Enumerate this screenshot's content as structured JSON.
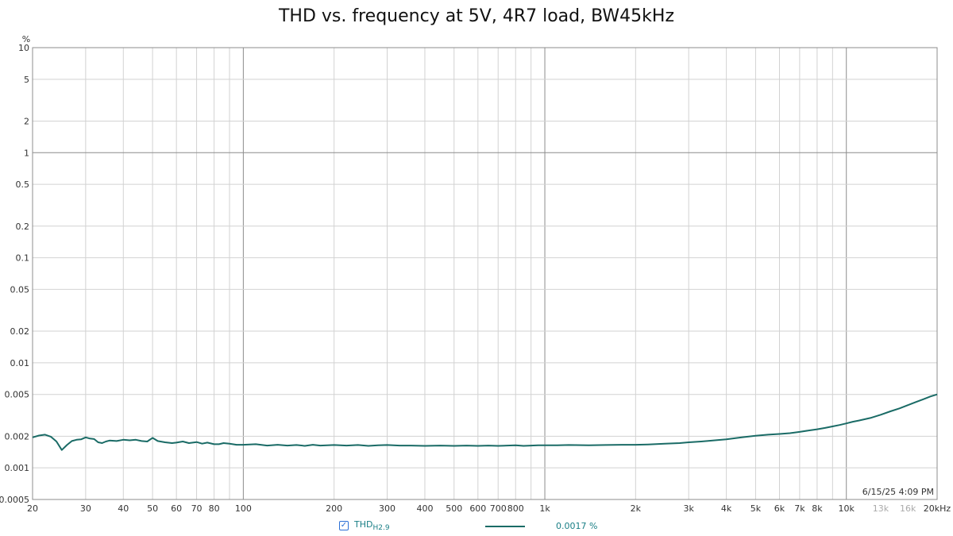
{
  "chart_data": {
    "type": "line",
    "title": "THD vs. frequency at 5V, 4R7 load, BW45kHz",
    "ylabel": "%",
    "xlabel": "",
    "x_scale": "log",
    "y_scale": "log",
    "xlim": [
      20,
      20000
    ],
    "ylim": [
      0.0005,
      10
    ],
    "grid": true,
    "y_ticks": [
      {
        "value": 10,
        "label": "10"
      },
      {
        "value": 5,
        "label": "5"
      },
      {
        "value": 2,
        "label": "2"
      },
      {
        "value": 1,
        "label": "1"
      },
      {
        "value": 0.5,
        "label": "0.5"
      },
      {
        "value": 0.2,
        "label": "0.2"
      },
      {
        "value": 0.1,
        "label": "0.1"
      },
      {
        "value": 0.05,
        "label": "0.05"
      },
      {
        "value": 0.02,
        "label": "0.02"
      },
      {
        "value": 0.01,
        "label": "0.01"
      },
      {
        "value": 0.005,
        "label": "0.005"
      },
      {
        "value": 0.002,
        "label": "0.002"
      },
      {
        "value": 0.001,
        "label": "0.001"
      },
      {
        "value": 0.0005,
        "label": "0.0005"
      }
    ],
    "x_ticks": [
      {
        "value": 20,
        "label": "20"
      },
      {
        "value": 30,
        "label": "30"
      },
      {
        "value": 40,
        "label": "40"
      },
      {
        "value": 50,
        "label": "50"
      },
      {
        "value": 60,
        "label": "60"
      },
      {
        "value": 70,
        "label": "70"
      },
      {
        "value": 80,
        "label": "80"
      },
      {
        "value": 100,
        "label": "100"
      },
      {
        "value": 200,
        "label": "200"
      },
      {
        "value": 300,
        "label": "300"
      },
      {
        "value": 400,
        "label": "400"
      },
      {
        "value": 500,
        "label": "500"
      },
      {
        "value": 600,
        "label": "600"
      },
      {
        "value": 700,
        "label": "700"
      },
      {
        "value": 800,
        "label": "800"
      },
      {
        "value": 1000,
        "label": "1k"
      },
      {
        "value": 2000,
        "label": "2k"
      },
      {
        "value": 3000,
        "label": "3k"
      },
      {
        "value": 4000,
        "label": "4k"
      },
      {
        "value": 5000,
        "label": "5k"
      },
      {
        "value": 6000,
        "label": "6k"
      },
      {
        "value": 7000,
        "label": "7k"
      },
      {
        "value": 8000,
        "label": "8k"
      },
      {
        "value": 10000,
        "label": "10k"
      },
      {
        "value": 13000,
        "label": "13k"
      },
      {
        "value": 16000,
        "label": "16k"
      },
      {
        "value": 20000,
        "label": "20kHz"
      }
    ],
    "series": [
      {
        "name": "THD",
        "name_sub": "H2.9",
        "color": "#1a6b66",
        "x": [
          20,
          21,
          22,
          23,
          24,
          25,
          26,
          27,
          28,
          29,
          30,
          31,
          32,
          33,
          34,
          35,
          36,
          38,
          40,
          42,
          44,
          46,
          48,
          50,
          52,
          55,
          58,
          60,
          63,
          66,
          70,
          73,
          76,
          80,
          83,
          86,
          90,
          95,
          100,
          110,
          120,
          130,
          140,
          150,
          160,
          170,
          180,
          190,
          200,
          220,
          240,
          260,
          280,
          300,
          330,
          360,
          400,
          450,
          500,
          550,
          600,
          650,
          700,
          750,
          800,
          850,
          900,
          950,
          1000,
          1100,
          1200,
          1400,
          1600,
          1800,
          2000,
          2200,
          2500,
          2800,
          3000,
          3300,
          3600,
          4000,
          4500,
          5000,
          5500,
          6000,
          6500,
          7000,
          7500,
          8000,
          8500,
          9000,
          9500,
          10000,
          10500,
          11000,
          12000,
          13000,
          14000,
          15000,
          16000,
          17000,
          18000,
          19000,
          20000
        ],
        "values": [
          0.00195,
          0.00203,
          0.00207,
          0.00198,
          0.00178,
          0.00148,
          0.00165,
          0.0018,
          0.00185,
          0.00187,
          0.00195,
          0.0019,
          0.00188,
          0.00175,
          0.00172,
          0.00178,
          0.00182,
          0.0018,
          0.00185,
          0.00183,
          0.00185,
          0.0018,
          0.00178,
          0.00193,
          0.0018,
          0.00175,
          0.00172,
          0.00174,
          0.00178,
          0.00172,
          0.00176,
          0.0017,
          0.00174,
          0.00168,
          0.00168,
          0.00172,
          0.0017,
          0.00166,
          0.00166,
          0.00168,
          0.00163,
          0.00166,
          0.00163,
          0.00165,
          0.00162,
          0.00166,
          0.00163,
          0.00164,
          0.00165,
          0.00163,
          0.00165,
          0.00162,
          0.00164,
          0.00165,
          0.00163,
          0.00163,
          0.00162,
          0.00163,
          0.00162,
          0.00163,
          0.00162,
          0.00163,
          0.00162,
          0.00163,
          0.00164,
          0.00162,
          0.00163,
          0.00164,
          0.00164,
          0.00164,
          0.00165,
          0.00164,
          0.00165,
          0.00166,
          0.00166,
          0.00167,
          0.0017,
          0.00172,
          0.00175,
          0.00178,
          0.00182,
          0.00187,
          0.00195,
          0.00202,
          0.00207,
          0.0021,
          0.00214,
          0.0022,
          0.00227,
          0.00233,
          0.0024,
          0.00248,
          0.00256,
          0.00265,
          0.00275,
          0.00282,
          0.00298,
          0.0032,
          0.00345,
          0.00368,
          0.00395,
          0.00423,
          0.0045,
          0.00478,
          0.005
        ]
      }
    ]
  },
  "legend": {
    "checked_mark": "✓",
    "name": "THD",
    "name_sub": "H2.9",
    "value": "0.0017 %"
  },
  "timestamp": "6/15/25 4:09 PM"
}
